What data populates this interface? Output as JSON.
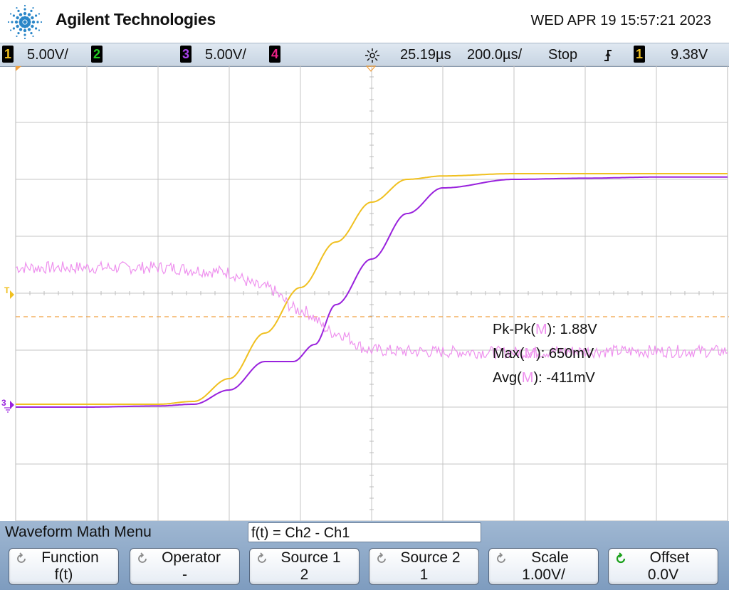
{
  "header": {
    "brand": "Agilent Technologies",
    "datetime": "WED APR 19 15:57:21 2023"
  },
  "status": {
    "ch1": {
      "num": "1",
      "scale": "5.00V/",
      "color": "#f0c020"
    },
    "ch2": {
      "num": "2",
      "color": "#22cc22"
    },
    "ch3": {
      "num": "3",
      "scale": "5.00V/",
      "color": "#9922dd"
    },
    "ch4": {
      "num": "4",
      "color": "#ee2288"
    },
    "delay": "25.19µs",
    "timebase": "200.0µs/",
    "run_state": "Stop",
    "trigger_source": "1",
    "trigger_level": "9.38V"
  },
  "markers": {
    "trigger": "T",
    "ch3_ground": "3"
  },
  "measurements": [
    {
      "label": "Pk-Pk(",
      "src": "M",
      "close": "): ",
      "value": "1.88V"
    },
    {
      "label": "Max(",
      "src": "M",
      "close": "): ",
      "value": "650mV"
    },
    {
      "label": "Avg(",
      "src": "M",
      "close": "): ",
      "value": "-411mV"
    }
  ],
  "menu": {
    "title": "Waveform Math Menu",
    "function_expr": "f(t) = Ch2 - Ch1",
    "softkeys": [
      {
        "label": "Function",
        "value": "f(t)"
      },
      {
        "label": "Operator",
        "value": "-"
      },
      {
        "label": "Source 1",
        "value": "2"
      },
      {
        "label": "Source 2",
        "value": "1"
      },
      {
        "label": "Scale",
        "value": "1.00V/"
      },
      {
        "label": "Offset",
        "value": "0.0V"
      }
    ]
  },
  "chart_data": {
    "type": "line",
    "x_divisions": 10,
    "y_divisions": 8,
    "time_per_div": "200.0µs/",
    "series": [
      {
        "name": "1",
        "color": "#f0c020",
        "x": [
          0,
          1,
          2,
          2.5,
          3,
          3.5,
          4,
          4.5,
          5,
          5.5,
          6,
          7,
          8,
          9,
          10
        ],
        "y": [
          -1.95,
          -1.95,
          -1.95,
          -1.9,
          -1.5,
          -0.7,
          0.1,
          0.9,
          1.6,
          2.0,
          2.06,
          2.1,
          2.1,
          2.1,
          2.1
        ]
      },
      {
        "name": "3",
        "color": "#9922dd",
        "x": [
          0,
          1,
          2,
          2.5,
          3,
          3.5,
          3.9,
          4.2,
          4.5,
          5,
          5.5,
          6,
          7,
          8,
          9,
          10
        ],
        "y": [
          -2.0,
          -2.0,
          -1.98,
          -1.95,
          -1.7,
          -1.2,
          -1.2,
          -0.9,
          -0.2,
          0.6,
          1.4,
          1.85,
          2.0,
          2.02,
          2.04,
          2.04
        ]
      },
      {
        "name": "M",
        "color": "#ee90ee",
        "x": [
          0,
          1,
          2,
          2.9,
          3.5,
          4,
          4.5,
          5,
          5.5,
          6,
          7,
          8,
          9,
          10
        ],
        "y": [
          0.45,
          0.45,
          0.45,
          0.38,
          0.1,
          -0.3,
          -0.7,
          -1.0,
          -1.02,
          -1.03,
          -1.04,
          -1.02,
          -1.02,
          -1.02
        ]
      }
    ],
    "trigger_level_marker": "dashed orange"
  }
}
